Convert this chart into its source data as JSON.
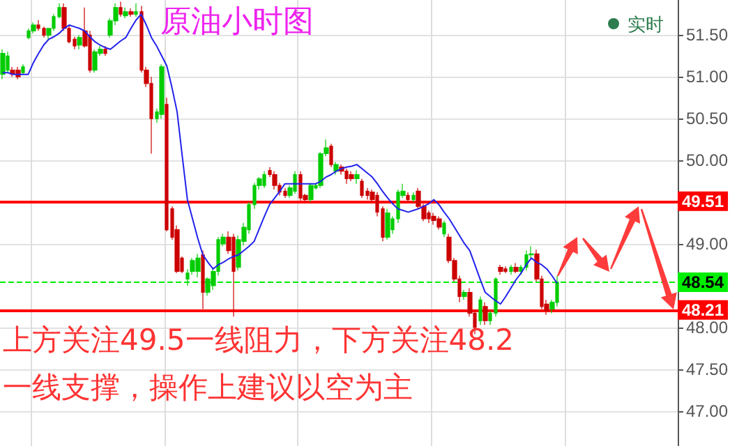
{
  "chart_data": {
    "type": "candlestick",
    "title": "原油小时图",
    "categories": [
      null,
      null,
      null,
      null,
      null,
      null,
      null,
      null,
      null,
      null,
      null,
      null,
      null,
      null,
      null,
      null,
      null,
      null,
      null,
      null,
      null,
      null,
      null,
      null,
      null,
      null,
      null,
      null,
      null,
      null,
      null,
      null,
      null,
      null,
      null,
      null,
      null,
      null,
      null,
      null,
      null,
      null,
      null,
      null,
      null,
      null,
      null,
      null,
      null,
      null,
      null,
      null,
      null,
      null,
      null,
      null,
      null,
      null,
      null,
      null,
      null,
      null,
      null,
      null,
      null,
      null,
      null,
      null,
      null,
      null,
      null,
      null,
      null,
      null,
      null,
      null,
      null,
      null,
      null,
      null,
      null,
      null,
      null,
      null,
      null,
      null,
      null,
      null,
      null,
      null,
      null,
      null,
      null,
      null,
      null,
      null,
      null,
      null,
      null,
      null,
      null,
      null,
      null,
      null,
      null,
      null,
      null,
      null,
      null,
      null,
      null,
      null,
      null,
      null,
      null,
      null,
      null,
      null,
      null,
      null,
      null,
      null,
      null,
      null,
      null,
      null,
      null,
      null,
      null,
      null,
      null,
      null
    ],
    "ohlc": [
      [
        51.03,
        51.33,
        50.97,
        51.28
      ],
      [
        51.08,
        51.3,
        51.05,
        51.25
      ],
      [
        51.08,
        51.12,
        51.0,
        51.03
      ],
      [
        51.08,
        51.12,
        50.97,
        51.0
      ],
      [
        51.05,
        51.15,
        51.02,
        51.12
      ],
      [
        51.47,
        51.58,
        51.45,
        51.55
      ],
      [
        51.55,
        51.65,
        51.52,
        51.62
      ],
      [
        51.62,
        51.68,
        51.55,
        51.58
      ],
      [
        51.58,
        51.6,
        51.47,
        51.5
      ],
      [
        51.5,
        51.58,
        51.45,
        51.58
      ],
      [
        51.58,
        51.75,
        51.55,
        51.72
      ],
      [
        51.72,
        51.88,
        51.7,
        51.83
      ],
      [
        51.83,
        51.88,
        51.55,
        51.58
      ],
      [
        51.58,
        51.62,
        51.4,
        51.42
      ],
      [
        51.45,
        51.48,
        51.33,
        51.37
      ],
      [
        51.38,
        51.5,
        51.33,
        51.47
      ],
      [
        51.55,
        51.83,
        51.35,
        51.37
      ],
      [
        51.5,
        51.55,
        51.05,
        51.08
      ],
      [
        51.08,
        51.33,
        51.05,
        51.3
      ],
      [
        51.28,
        51.37,
        51.25,
        51.33
      ],
      [
        51.33,
        51.37,
        51.25,
        51.28
      ],
      [
        51.5,
        51.7,
        51.47,
        51.67
      ],
      [
        51.67,
        51.88,
        51.62,
        51.83
      ],
      [
        51.83,
        51.9,
        51.72,
        51.75
      ],
      [
        51.73,
        51.83,
        51.7,
        51.78
      ],
      [
        51.78,
        51.82,
        51.72,
        51.75
      ],
      [
        51.75,
        51.88,
        51.72,
        51.78
      ],
      [
        51.78,
        51.85,
        51.05,
        51.08
      ],
      [
        51.08,
        51.12,
        50.88,
        50.92
      ],
      [
        50.92,
        51.0,
        50.08,
        50.5
      ],
      [
        50.5,
        50.62,
        50.45,
        50.58
      ],
      [
        50.55,
        51.15,
        50.5,
        51.12
      ],
      [
        50.67,
        50.75,
        49.15,
        49.17
      ],
      [
        49.42,
        49.45,
        49.05,
        49.08
      ],
      [
        49.17,
        49.22,
        48.65,
        48.67
      ],
      [
        48.83,
        48.85,
        48.65,
        48.67
      ],
      [
        48.58,
        48.7,
        48.5,
        48.65
      ],
      [
        48.67,
        48.83,
        48.63,
        48.8
      ],
      [
        48.67,
        48.88,
        48.6,
        48.83
      ],
      [
        48.87,
        48.92,
        48.22,
        48.42
      ],
      [
        48.42,
        48.6,
        48.38,
        48.58
      ],
      [
        48.5,
        48.7,
        48.45,
        48.67
      ],
      [
        48.67,
        49.08,
        48.62,
        49.05
      ],
      [
        49.0,
        49.12,
        48.97,
        49.08
      ],
      [
        49.08,
        49.15,
        48.88,
        48.92
      ],
      [
        49.08,
        49.12,
        48.13,
        48.67
      ],
      [
        48.72,
        49.1,
        48.68,
        49.05
      ],
      [
        49.03,
        49.25,
        48.98,
        49.2
      ],
      [
        49.17,
        49.5,
        49.12,
        49.47
      ],
      [
        49.47,
        49.73,
        49.42,
        49.7
      ],
      [
        49.7,
        49.8,
        49.65,
        49.78
      ],
      [
        49.7,
        49.87,
        49.67,
        49.83
      ],
      [
        49.88,
        49.92,
        49.8,
        49.83
      ],
      [
        49.83,
        49.87,
        49.65,
        49.7
      ],
      [
        49.7,
        49.73,
        49.58,
        49.62
      ],
      [
        49.63,
        49.67,
        49.55,
        49.58
      ],
      [
        49.58,
        49.7,
        49.55,
        49.67
      ],
      [
        49.63,
        49.87,
        49.6,
        49.83
      ],
      [
        49.83,
        49.87,
        49.52,
        49.55
      ],
      [
        49.58,
        49.6,
        49.5,
        49.53
      ],
      [
        49.53,
        49.73,
        49.5,
        49.7
      ],
      [
        49.67,
        49.73,
        49.65,
        49.7
      ],
      [
        49.7,
        50.1,
        49.67,
        50.08
      ],
      [
        50.08,
        50.25,
        50.05,
        50.15
      ],
      [
        50.17,
        50.2,
        49.92,
        49.95
      ],
      [
        49.87,
        49.98,
        49.83,
        49.95
      ],
      [
        49.92,
        49.95,
        49.83,
        49.87
      ],
      [
        49.87,
        49.9,
        49.72,
        49.78
      ],
      [
        49.83,
        49.87,
        49.75,
        49.78
      ],
      [
        49.78,
        49.88,
        49.72,
        49.83
      ],
      [
        49.75,
        49.78,
        49.55,
        49.58
      ],
      [
        49.63,
        49.67,
        49.53,
        49.58
      ],
      [
        49.62,
        49.65,
        49.5,
        49.53
      ],
      [
        49.58,
        49.62,
        49.33,
        49.38
      ],
      [
        49.42,
        49.45,
        49.03,
        49.08
      ],
      [
        49.08,
        49.42,
        49.05,
        49.37
      ],
      [
        49.17,
        49.33,
        49.12,
        49.3
      ],
      [
        49.3,
        49.65,
        49.25,
        49.62
      ],
      [
        49.58,
        49.72,
        49.55,
        49.63
      ],
      [
        49.58,
        49.62,
        49.5,
        49.53
      ],
      [
        49.53,
        49.62,
        49.5,
        49.58
      ],
      [
        49.63,
        49.67,
        49.42,
        49.45
      ],
      [
        49.45,
        49.48,
        49.27,
        49.3
      ],
      [
        49.37,
        49.4,
        49.25,
        49.3
      ],
      [
        49.33,
        49.37,
        49.23,
        49.28
      ],
      [
        49.3,
        49.33,
        49.17,
        49.2
      ],
      [
        49.12,
        49.28,
        49.08,
        49.25
      ],
      [
        49.08,
        49.12,
        48.77,
        48.8
      ],
      [
        48.8,
        48.83,
        48.55,
        48.58
      ],
      [
        48.58,
        48.62,
        48.3,
        48.37
      ],
      [
        48.37,
        48.45,
        48.33,
        48.42
      ],
      [
        48.42,
        48.47,
        48.13,
        48.17
      ],
      [
        48.17,
        48.2,
        47.92,
        48.0
      ],
      [
        48.08,
        48.37,
        48.03,
        48.33
      ],
      [
        48.25,
        48.3,
        48.03,
        48.08
      ],
      [
        48.08,
        48.2,
        48.03,
        48.17
      ],
      [
        48.17,
        48.6,
        48.13,
        48.58
      ],
      [
        48.72,
        48.75,
        48.63,
        48.67
      ],
      [
        48.7,
        48.73,
        48.65,
        48.67
      ],
      [
        48.67,
        48.75,
        48.63,
        48.72
      ],
      [
        48.72,
        48.77,
        48.65,
        48.67
      ],
      [
        48.67,
        48.75,
        48.63,
        48.72
      ],
      [
        48.72,
        48.92,
        48.68,
        48.87
      ],
      [
        48.87,
        48.97,
        48.83,
        48.88
      ],
      [
        48.88,
        48.93,
        48.55,
        48.58
      ],
      [
        48.58,
        48.62,
        48.22,
        48.25
      ],
      [
        48.28,
        48.33,
        48.15,
        48.2
      ],
      [
        48.22,
        48.33,
        48.17,
        48.3
      ],
      [
        48.3,
        48.62,
        48.25,
        48.54
      ],
      null,
      null,
      null,
      null,
      null,
      null,
      null,
      null,
      null,
      null,
      null,
      null,
      null,
      null,
      null,
      null,
      null,
      null,
      null,
      null,
      null,
      null,
      null
    ],
    "colors": [
      "#00cc00",
      "#00cc00",
      "#cc0000",
      "#cc0000",
      "#00cc00",
      "#00cc00",
      "#00cc00",
      "#cc0000",
      "#cc0000",
      "#00cc00",
      "#00cc00",
      "#00cc00",
      "#cc0000",
      "#cc0000",
      "#cc0000",
      "#00cc00",
      "#cc0000",
      "#cc0000",
      "#00cc00",
      "#00cc00",
      "#cc0000",
      "#00cc00",
      "#00cc00",
      "#cc0000",
      "#00cc00",
      "#cc0000",
      "#00cc00",
      "#cc0000",
      "#cc0000",
      "#cc0000",
      "#00cc00",
      "#00cc00",
      "#cc0000",
      "#cc0000",
      "#cc0000",
      "#cc0000",
      "#00cc00",
      "#00cc00",
      "#00cc00",
      "#cc0000",
      "#00cc00",
      "#00cc00",
      "#00cc00",
      "#00cc00",
      "#cc0000",
      "#cc0000",
      "#00cc00",
      "#00cc00",
      "#00cc00",
      "#00cc00",
      "#00cc00",
      "#00cc00",
      "#cc0000",
      "#cc0000",
      "#cc0000",
      "#cc0000",
      "#00cc00",
      "#00cc00",
      "#cc0000",
      "#cc0000",
      "#00cc00",
      "#00cc00",
      "#00cc00",
      "#00cc00",
      "#cc0000",
      "#00cc00",
      "#cc0000",
      "#cc0000",
      "#cc0000",
      "#00cc00",
      "#cc0000",
      "#cc0000",
      "#cc0000",
      "#cc0000",
      "#cc0000",
      "#00cc00",
      "#00cc00",
      "#00cc00",
      "#00cc00",
      "#cc0000",
      "#00cc00",
      "#cc0000",
      "#cc0000",
      "#cc0000",
      "#cc0000",
      "#cc0000",
      "#00cc00",
      "#cc0000",
      "#cc0000",
      "#cc0000",
      "#00cc00",
      "#cc0000",
      "#cc0000",
      "#00cc00",
      "#cc0000",
      "#00cc00",
      "#00cc00",
      "#cc0000",
      "#cc0000",
      "#00cc00",
      "#cc0000",
      "#00cc00",
      "#00cc00",
      "#00cc00",
      "#cc0000",
      "#cc0000",
      "#cc0000",
      "#00cc00",
      "#00cc00",
      null,
      null,
      null,
      null,
      null,
      null,
      null,
      null,
      null,
      null,
      null,
      null,
      null,
      null,
      null,
      null,
      null,
      null,
      null,
      null,
      null,
      null,
      null
    ],
    "series": [
      {
        "type": "line",
        "color": "#2222ee",
        "values": [
          51.05,
          51.05,
          51.03,
          51.03,
          51.03,
          51.03,
          51.17,
          51.28,
          51.38,
          51.45,
          51.48,
          51.52,
          51.58,
          51.62,
          51.6,
          51.58,
          51.55,
          51.48,
          51.42,
          51.38,
          51.35,
          51.33,
          51.38,
          51.43,
          51.47,
          51.58,
          51.68,
          51.75,
          51.62,
          51.47,
          51.37,
          51.25,
          51.13,
          50.87,
          50.58,
          50.05,
          49.53,
          49.3,
          49.07,
          48.87,
          48.78,
          48.7,
          48.75,
          48.78,
          48.82,
          48.85,
          48.87,
          48.92,
          48.97,
          49.03,
          49.18,
          49.33,
          49.47,
          49.55,
          49.63,
          49.72,
          49.72,
          49.72,
          49.72,
          49.72,
          49.72,
          49.72,
          49.75,
          49.8,
          49.83,
          49.87,
          49.9,
          49.92,
          49.93,
          49.95,
          49.9,
          49.85,
          49.8,
          49.72,
          49.63,
          49.55,
          49.48,
          49.42,
          49.4,
          49.38,
          49.4,
          49.42,
          49.45,
          49.48,
          49.53,
          49.47,
          49.38,
          49.3,
          49.2,
          49.1,
          49.0,
          48.92,
          48.75,
          48.58,
          48.42,
          48.37,
          48.32,
          48.28,
          48.37,
          48.47,
          48.57,
          48.65,
          48.75,
          48.83,
          48.78,
          48.75,
          48.7,
          48.62,
          48.53,
          null,
          null,
          null,
          null,
          null,
          null,
          null,
          null,
          null,
          null,
          null,
          null,
          null,
          null,
          null,
          null,
          null,
          null,
          null,
          null,
          null,
          null,
          null
        ]
      }
    ],
    "ylim": [
      46.58,
      51.92
    ],
    "yticks": [
      {
        "value": 47,
        "label": "47.00"
      },
      {
        "value": 47.5,
        "label": "47.50"
      },
      {
        "value": 48,
        "label": "48.00"
      },
      {
        "value": 49,
        "label": "49.00"
      },
      {
        "value": 50,
        "label": "50.00"
      },
      {
        "value": 50.5,
        "label": "50.50"
      },
      {
        "value": 51,
        "label": "51.00"
      },
      {
        "value": 51.5,
        "label": "51.50"
      }
    ],
    "ref_lines": [
      {
        "axis": "y",
        "value": 49.51,
        "label": "49.51",
        "color": "#ff0000",
        "line_style": "solid"
      },
      {
        "axis": "y",
        "value": 48.21,
        "label": "48.21",
        "color": "#ff0000",
        "line_style": "solid"
      },
      {
        "axis": "y",
        "value": 48.54,
        "label": "48.54",
        "color": "#00ee00",
        "line_style": "dashed"
      }
    ],
    "annotations": [
      "实时",
      "上方关注49.5一线阻力，下方关注48.2",
      "一线支撑，操作上建议以空为主"
    ],
    "grid": true,
    "tick_labels": "y"
  }
}
